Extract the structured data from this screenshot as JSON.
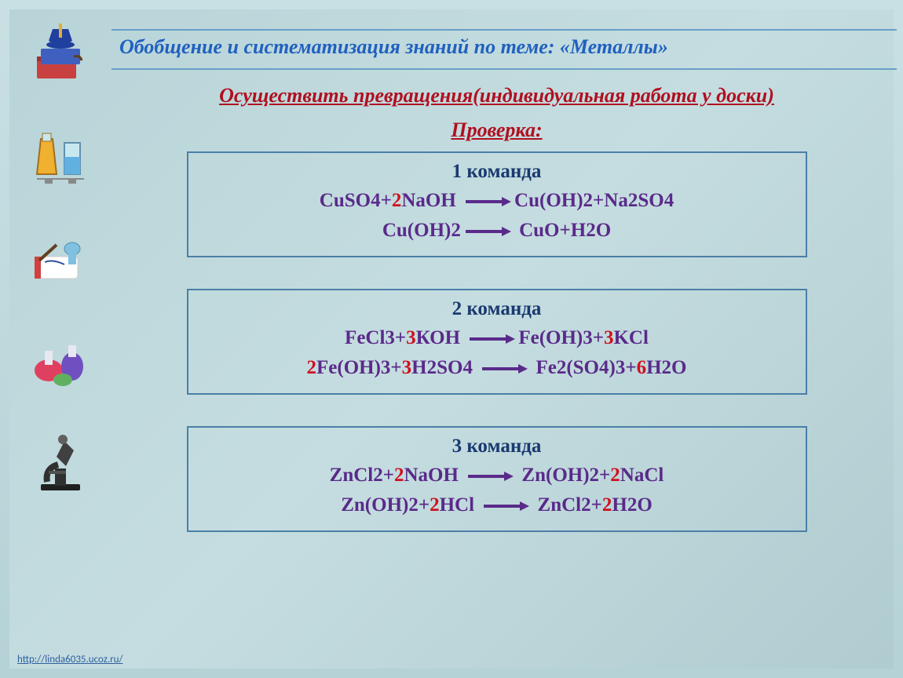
{
  "title": "Обобщение и систематизация знаний по теме: «Металлы»",
  "subtitle": "Осуществить превращения(индивидуальная работа у доски)",
  "check_label": "Проверка:",
  "teams": [
    {
      "title": "1 команда",
      "eq1": [
        {
          "t": "CuSO4+",
          "c": "p"
        },
        {
          "t": "2",
          "c": "r"
        },
        {
          "t": "NaOH ",
          "c": "p"
        },
        {
          "arrow": true
        },
        {
          "t": "Cu(OH)2+Na2SO4",
          "c": "p"
        }
      ],
      "eq2": [
        {
          "t": "Cu(OH)2",
          "c": "p"
        },
        {
          "arrow": true
        },
        {
          "t": " CuO+H2O",
          "c": "p"
        }
      ]
    },
    {
      "title": "2 команда",
      "eq1": [
        {
          "t": "FeCl3+",
          "c": "p"
        },
        {
          "t": "3",
          "c": "r"
        },
        {
          "t": "КОН   ",
          "c": "p"
        },
        {
          "arrow": true
        },
        {
          "t": "Fe(OH)3+",
          "c": "p"
        },
        {
          "t": "3",
          "c": "r"
        },
        {
          "t": "KCl",
          "c": "p"
        }
      ],
      "eq2": [
        {
          "t": "2",
          "c": "r"
        },
        {
          "t": "Fe(OH)3+",
          "c": "p"
        },
        {
          "t": "3",
          "c": "r"
        },
        {
          "t": "H2SO4 ",
          "c": "p"
        },
        {
          "arrow": true
        },
        {
          "t": " Fe2(SO4)3+",
          "c": "p"
        },
        {
          "t": "6",
          "c": "r"
        },
        {
          "t": "H2O",
          "c": "p"
        }
      ]
    },
    {
      "title": "3 команда",
      "eq1": [
        {
          "t": "ZnCl2+",
          "c": "p"
        },
        {
          "t": "2",
          "c": "r"
        },
        {
          "t": "NaOH   ",
          "c": "p"
        },
        {
          "arrow": true
        },
        {
          "t": " Zn(OH)2+",
          "c": "p"
        },
        {
          "t": "2",
          "c": "r"
        },
        {
          "t": "NaCl",
          "c": "p"
        }
      ],
      "eq2": [
        {
          "t": "Zn(OH)2+",
          "c": "p"
        },
        {
          "t": "2",
          "c": "r"
        },
        {
          "t": "HCl   ",
          "c": "p"
        },
        {
          "arrow": true
        },
        {
          "t": " ZnCl2+",
          "c": "p"
        },
        {
          "t": "2",
          "c": "r"
        },
        {
          "t": "H2O",
          "c": "p"
        }
      ]
    }
  ],
  "footer": "http://linda6035.ucoz.ru/",
  "colors": {
    "slide_bg": "#bcd8db",
    "border": "#4a7fa8",
    "title": "#2060c0",
    "red": "#b01020",
    "purple": "#5a2a8a",
    "coef_red": "#d01020"
  }
}
